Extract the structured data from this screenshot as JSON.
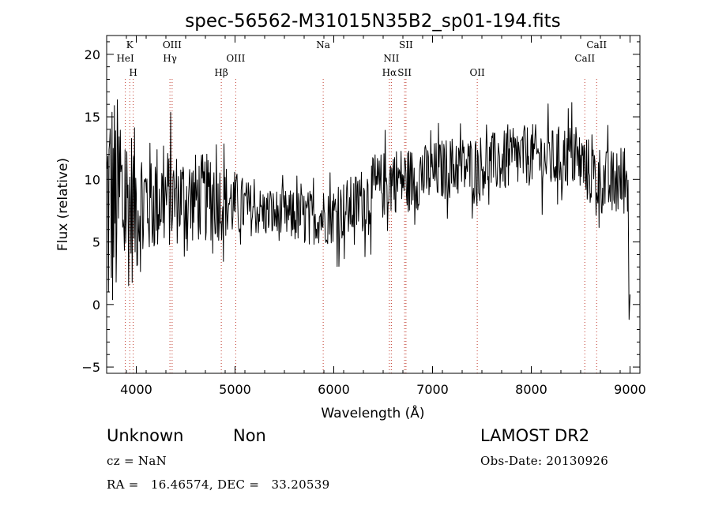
{
  "chart_data": {
    "type": "line",
    "title": "spec-56562-M31015N35B2_sp01-194.fits",
    "xlabel": "Wavelength (Å)",
    "ylabel": "Flux (relative)",
    "xlim": [
      3700,
      9100
    ],
    "ylim": [
      -5.5,
      21.5
    ],
    "xticks": [
      4000,
      5000,
      6000,
      7000,
      8000,
      9000
    ],
    "yticks": [
      -5,
      0,
      5,
      10,
      15,
      20
    ],
    "grid": false,
    "line_color": "#000000",
    "marker_color": "#c0392b",
    "lines": [
      {
        "name": "K",
        "wavelength": 3934,
        "row": 0
      },
      {
        "name": "HeI",
        "wavelength": 3889,
        "row": 1
      },
      {
        "name": "H",
        "wavelength": 3969,
        "row": 2
      },
      {
        "name": "OIII",
        "wavelength": 4363,
        "row": 0
      },
      {
        "name": "Hγ",
        "wavelength": 4341,
        "row": 1
      },
      {
        "name": "OIII",
        "wavelength": 5007,
        "row": 1
      },
      {
        "name": "Hβ",
        "wavelength": 4861,
        "row": 2
      },
      {
        "name": "Na",
        "wavelength": 5893,
        "row": 0
      },
      {
        "name": "SII",
        "wavelength": 6731,
        "row": 0
      },
      {
        "name": "NII",
        "wavelength": 6583,
        "row": 1
      },
      {
        "name": "Hα",
        "wavelength": 6563,
        "row": 2
      },
      {
        "name": "SII",
        "wavelength": 6717,
        "row": 2
      },
      {
        "name": "OII",
        "wavelength": 7453,
        "row": 2
      },
      {
        "name": "CaII",
        "wavelength": 8662,
        "row": 0
      },
      {
        "name": "CaII",
        "wavelength": 8542,
        "row": 1
      }
    ],
    "spectrum_envelope": {
      "x": [
        3700,
        3800,
        3900,
        4000,
        4200,
        4400,
        4600,
        4800,
        5000,
        5200,
        5400,
        5600,
        5800,
        6000,
        6200,
        6400,
        6600,
        6800,
        7000,
        7200,
        7400,
        7600,
        7800,
        8000,
        8200,
        8400,
        8600,
        8800,
        8950
      ],
      "y": [
        8,
        8,
        8,
        8,
        8.5,
        8.5,
        8.5,
        8.5,
        8,
        7.5,
        7.2,
        7,
        7,
        7.2,
        7.8,
        9,
        10,
        10,
        10.5,
        11,
        11,
        11.3,
        11.5,
        12,
        11.5,
        12,
        10.5,
        9.5,
        10
      ]
    },
    "spectrum_noise": {
      "x": [
        3700,
        3800,
        3900,
        4100,
        4400,
        4800,
        5200,
        5800,
        6400,
        7000,
        8000,
        8600,
        9000
      ],
      "y": [
        11,
        9,
        7,
        5,
        3.8,
        3.5,
        2,
        2.2,
        2.8,
        2.5,
        2.5,
        2.7,
        3
      ]
    },
    "spectrum_end": {
      "x": [
        8990,
        9000
      ],
      "y": [
        -1.2,
        0.8
      ]
    }
  },
  "footer": {
    "object_class": "Unknown",
    "object_subclass": "Non",
    "survey": "LAMOST DR2",
    "redshift": "cz = NaN",
    "obs_date": "Obs-Date: 20130926",
    "coords": "RA =   16.46574, DEC =   33.20539"
  }
}
